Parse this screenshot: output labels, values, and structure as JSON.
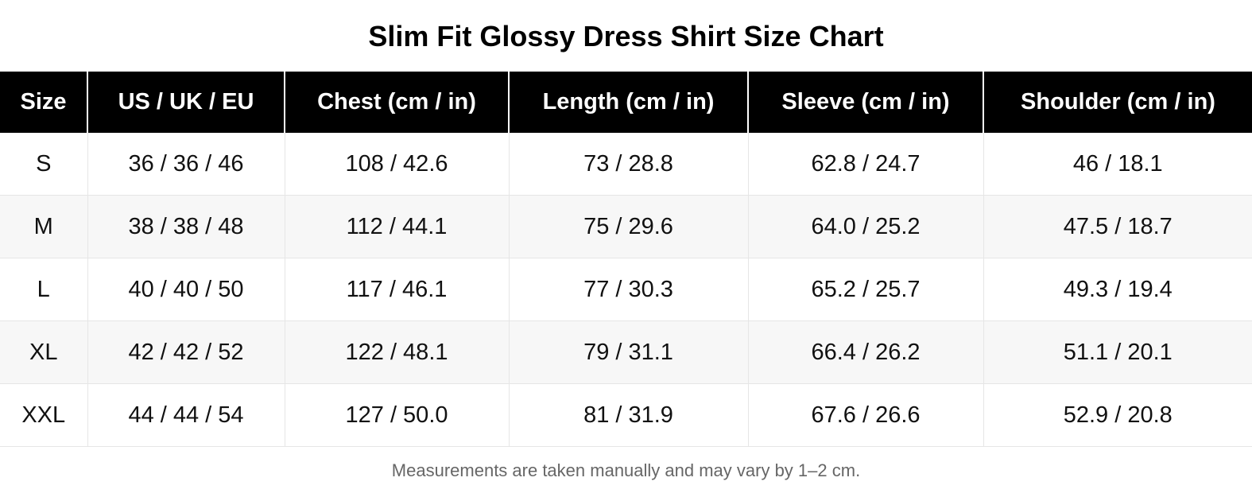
{
  "title": "Slim Fit Glossy Dress Shirt Size Chart",
  "table": {
    "header": [
      "Size",
      "US / UK / EU",
      "Chest (cm / in)",
      "Length (cm / in)",
      "Sleeve (cm / in)",
      "Shoulder (cm / in)"
    ],
    "rows": [
      [
        "S",
        "36 / 36 / 46",
        "108 / 42.6",
        "73 / 28.8",
        "62.8 / 24.7",
        "46 / 18.1"
      ],
      [
        "M",
        "38 / 38 / 48",
        "112 / 44.1",
        "75 / 29.6",
        "64.0 / 25.2",
        "47.5 / 18.7"
      ],
      [
        "L",
        "40 / 40 / 50",
        "117 / 46.1",
        "77 / 30.3",
        "65.2 / 25.7",
        "49.3 / 19.4"
      ],
      [
        "XL",
        "42 / 42 / 52",
        "122 / 48.1",
        "79 / 31.1",
        "66.4 / 26.2",
        "51.1 / 20.1"
      ],
      [
        "XXL",
        "44 / 44 / 54",
        "127 / 50.0",
        "81 / 31.9",
        "67.6 / 26.6",
        "52.9 / 20.8"
      ]
    ]
  },
  "footnote": "Measurements are taken manually and may vary by 1–2 cm."
}
